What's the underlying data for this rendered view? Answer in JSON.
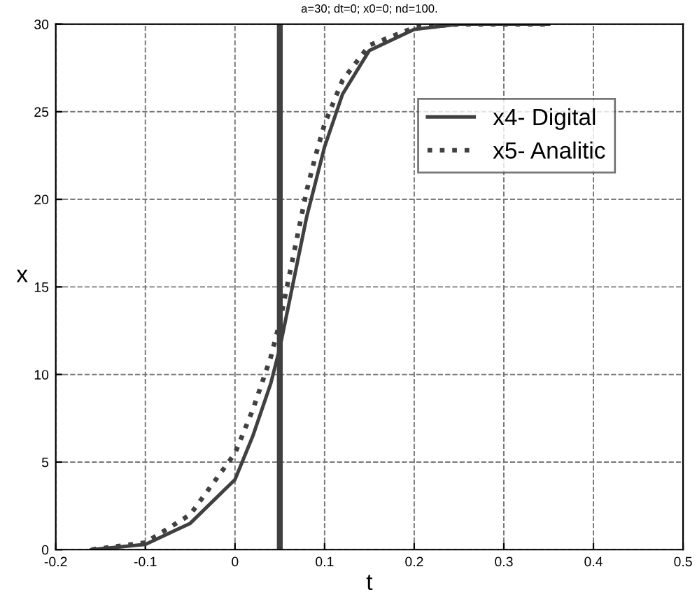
{
  "chart_data": {
    "type": "line",
    "title": "a=30; dt=0; x0=0; nd=100.",
    "xlabel": "t",
    "ylabel": "x",
    "xlim": [
      -0.2,
      0.5
    ],
    "xticks": [
      -0.2,
      -0.1,
      0,
      0.1,
      0.2,
      0.3,
      0.4,
      0.5
    ],
    "ylim": [
      0,
      30
    ],
    "yticks": [
      0,
      5,
      10,
      15,
      20,
      25,
      30
    ],
    "grid": true,
    "legend": "top right",
    "series": [
      {
        "name": "x4- Digital",
        "color": "#404040",
        "line_style": "solid",
        "x": [
          -0.16,
          -0.1,
          -0.05,
          0,
          0.02,
          0.04,
          0.05,
          0.06,
          0.07,
          0.08,
          0.09,
          0.1,
          0.12,
          0.15,
          0.2,
          0.25,
          0.35
        ],
        "values": [
          0,
          0.3,
          1.5,
          4,
          6.5,
          9.5,
          11.5,
          14,
          16.5,
          19,
          21,
          23,
          26,
          28.5,
          29.7,
          30,
          30
        ]
      },
      {
        "name": "x5- Analitic",
        "color": "#404040",
        "line_style": "dotted",
        "x": [
          -0.16,
          -0.1,
          -0.05,
          0,
          0.02,
          0.04,
          0.05,
          0.06,
          0.07,
          0.08,
          0.09,
          0.1,
          0.12,
          0.15,
          0.2,
          0.25,
          0.35
        ],
        "values": [
          0,
          0.4,
          2,
          5.5,
          8,
          11,
          13,
          15.5,
          18,
          20.5,
          22.5,
          24.3,
          26.8,
          28.8,
          29.8,
          30,
          30
        ]
      }
    ],
    "ref_lines": [
      {
        "axis": "x",
        "value": 0.05,
        "color": "#404040",
        "line_style": "solid"
      }
    ]
  }
}
